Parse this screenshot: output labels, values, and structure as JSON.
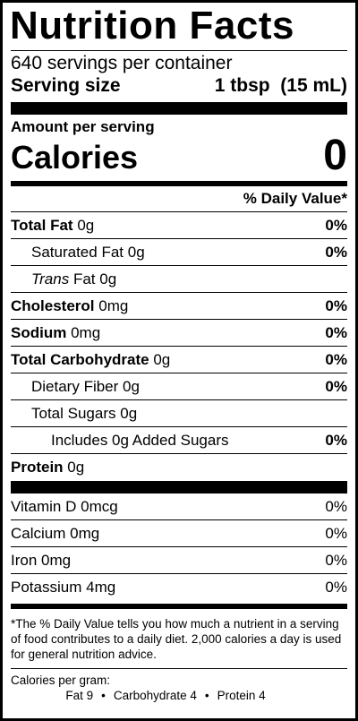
{
  "title": "Nutrition Facts",
  "servings": "640 servings per container",
  "serving_size": {
    "label": "Serving size",
    "value": "1 tbsp  (15 mL)"
  },
  "amount_per_serving": "Amount per serving",
  "calories": {
    "label": "Calories",
    "value": "0"
  },
  "dv_header": "% Daily Value*",
  "nutrients": [
    {
      "name": "Total Fat",
      "amount": "0g",
      "dv": "0%",
      "bold": true,
      "indent": 0
    },
    {
      "name": "Saturated Fat",
      "amount": "0g",
      "dv": "0%",
      "bold": false,
      "indent": 1
    },
    {
      "name": "Trans",
      "suffix": "Fat",
      "amount": "0g",
      "dv": "",
      "bold": false,
      "indent": 1
    },
    {
      "name": "Cholesterol",
      "amount": "0mg",
      "dv": "0%",
      "bold": true,
      "indent": 0
    },
    {
      "name": "Sodium",
      "amount": "0mg",
      "dv": "0%",
      "bold": true,
      "indent": 0
    },
    {
      "name": "Total Carbohydrate",
      "amount": "0g",
      "dv": "0%",
      "bold": true,
      "indent": 0
    },
    {
      "name": "Dietary Fiber",
      "amount": "0g",
      "dv": "0%",
      "bold": false,
      "indent": 1
    },
    {
      "name": "Total Sugars",
      "amount": "0g",
      "dv": "",
      "bold": false,
      "indent": 1
    },
    {
      "name": "Includes 0g Added Sugars",
      "amount": "",
      "dv": "0%",
      "bold": false,
      "indent": 2
    },
    {
      "name": "Protein",
      "amount": "0g",
      "dv": "",
      "bold": true,
      "indent": 0
    }
  ],
  "vitamins": [
    {
      "name": "Vitamin D",
      "amount": "0mcg",
      "dv": "0%"
    },
    {
      "name": "Calcium",
      "amount": "0mg",
      "dv": "0%"
    },
    {
      "name": "Iron",
      "amount": "0mg",
      "dv": "0%"
    },
    {
      "name": "Potassium",
      "amount": "4mg",
      "dv": "0%"
    }
  ],
  "footnote": "*The % Daily Value tells you how much a nutrient in a serving of food contributes to a daily diet. 2,000 calories a day is used for general nutrition advice.",
  "calories_per_gram": {
    "label": "Calories per gram:",
    "fat": "Fat 9",
    "carbohydrate": "Carbohydrate 4",
    "protein": "Protein 4",
    "separator": "•"
  }
}
